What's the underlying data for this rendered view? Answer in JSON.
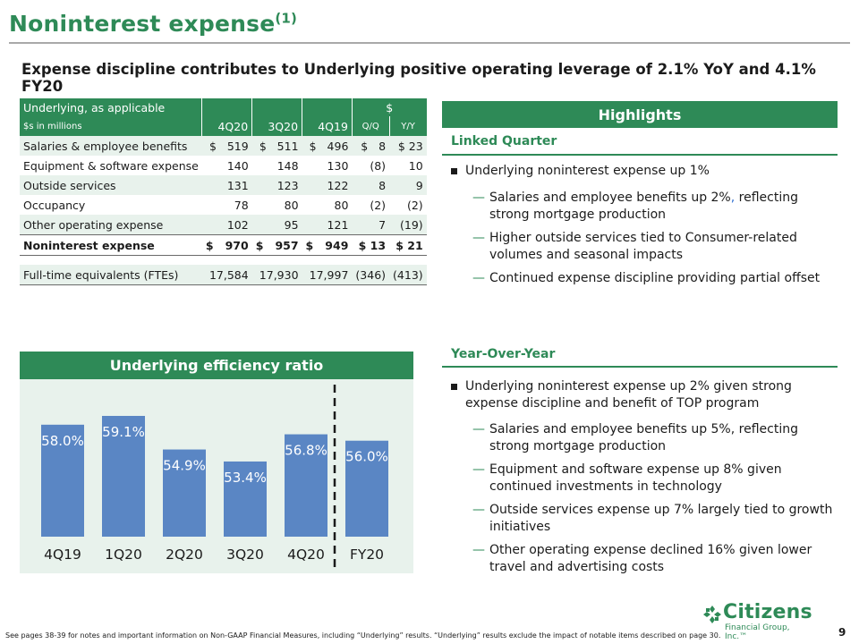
{
  "header": {
    "title": "Noninterest expense",
    "title_superscript": "(1)",
    "subtitle": "Expense discipline contributes to Underlying positive operating leverage of 2.1% YoY and 4.1% FY20"
  },
  "table": {
    "caption": "Underlying, as applicable",
    "units": "$s in millions",
    "columns": [
      "4Q20",
      "3Q20",
      "4Q19"
    ],
    "change_group": "$",
    "change_columns": [
      "Q/Q",
      "Y/Y"
    ],
    "rows": [
      {
        "label": "Salaries & employee benefits",
        "c1": "$   519",
        "c2": "$   511",
        "c3": "$   496",
        "qq": "$   8",
        "yy": "$ 23"
      },
      {
        "label": "Equipment & software expense",
        "c1": "140",
        "c2": "148",
        "c3": "130",
        "qq": "(8)",
        "yy": "10"
      },
      {
        "label": "Outside services",
        "c1": "131",
        "c2": "123",
        "c3": "122",
        "qq": "8",
        "yy": "9"
      },
      {
        "label": "Occupancy",
        "c1": "78",
        "c2": "80",
        "c3": "80",
        "qq": "(2)",
        "yy": "(2)"
      },
      {
        "label": "Other operating expense",
        "c1": "102",
        "c2": "95",
        "c3": "121",
        "qq": "7",
        "yy": "(19)"
      },
      {
        "label": "Noninterest expense",
        "c1": "$   970",
        "c2": "$   957",
        "c3": "$   949",
        "qq": "$ 13",
        "yy": "$ 21"
      },
      {
        "label": "Full-time equivalents (FTEs)",
        "c1": "17,584",
        "c2": "17,930",
        "c3": "17,997",
        "qq": "(346)",
        "yy": "(413)"
      }
    ]
  },
  "highlights": {
    "title": "Highlights",
    "linked_quarter": {
      "label": "Linked Quarter",
      "bullet": "Underlying noninterest expense up 1%",
      "sub": [
        {
          "a": "Salaries and employee benefits up 2%",
          "b": ",",
          "c": " reflecting strong mortgage production"
        },
        "Higher outside services tied to Consumer-related volumes and seasonal impacts",
        "Continued expense discipline providing partial offset"
      ]
    },
    "yoy": {
      "label": "Year-Over-Year",
      "bullet": "Underlying noninterest expense up 2% given strong expense discipline and benefit of TOP program",
      "sub": [
        "Salaries and employee benefits up 5%, reflecting strong mortgage production",
        "Equipment and software expense up 8% given continued investments in technology",
        "Outside services expense up 7% largely tied to growth initiatives",
        "Other operating expense declined 16% given lower travel and advertising costs"
      ]
    }
  },
  "chart_data": {
    "type": "bar",
    "title": "Underlying efficiency ratio",
    "categories": [
      "4Q19",
      "1Q20",
      "2Q20",
      "3Q20",
      "4Q20",
      "FY20"
    ],
    "values": [
      58.0,
      59.1,
      54.9,
      53.4,
      56.8,
      56.0
    ],
    "value_labels": [
      "58.0%",
      "59.1%",
      "54.9%",
      "53.4%",
      "56.8%",
      "56.0%"
    ],
    "ylim": [
      44,
      61
    ],
    "divider_before_category": "FY20",
    "colors": {
      "bar": "#5a86c4",
      "label": "#ffffff",
      "divider": "#1b1b1b"
    }
  },
  "footer": {
    "footnote": "See pages 38-39 for notes and important information on Non-GAAP Financial Measures, including “Underlying” results. “Underlying” results exclude the impact of notable items described on page 30.",
    "page_number": "9",
    "logo_name": "Citizens",
    "logo_sub": "Financial Group, Inc.™"
  },
  "colors": {
    "brand_green": "#2e8a57",
    "band": "#e8f2ec"
  }
}
